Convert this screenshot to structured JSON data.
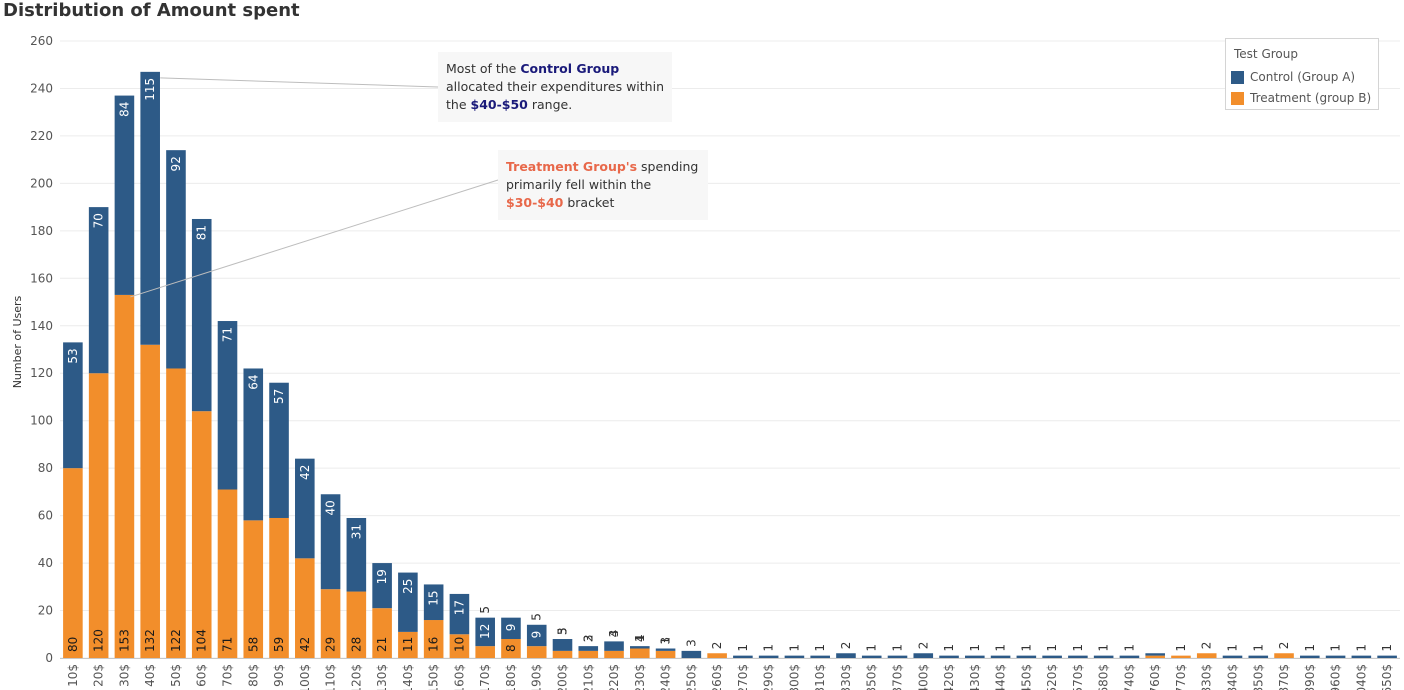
{
  "header": {
    "title": "Distribution of Amount spent"
  },
  "colors": {
    "control": "#2d5a87",
    "treatment": "#f28e2b",
    "grid": "#ececec",
    "axis_text": "#555555"
  },
  "legend": {
    "title": "Test Group",
    "items": [
      {
        "label": "Control (Group A)",
        "color": "#2d5a87"
      },
      {
        "label": "Treatment (group B)",
        "color": "#f28e2b"
      }
    ]
  },
  "annotations": {
    "control": {
      "prefix": "Most of the ",
      "group": "Control Group",
      "middle": " allocated their expenditures within the ",
      "range": "$40-$50",
      "suffix": " range."
    },
    "treatment": {
      "group": "Treatment Group's",
      "middle": " spending primarily fell within the ",
      "range": "$30-$40",
      "suffix": " bracket"
    }
  },
  "chart_data": {
    "type": "bar",
    "stacked": true,
    "title": "Distribution of Amount spent",
    "xlabel": "",
    "ylabel": "Number of Users",
    "ylim": [
      0,
      260
    ],
    "yticks": [
      0,
      20,
      40,
      60,
      80,
      100,
      120,
      140,
      160,
      180,
      200,
      220,
      240,
      260
    ],
    "grid": true,
    "legend_position": "top-right",
    "categories": [
      "10$",
      "20$",
      "30$",
      "40$",
      "50$",
      "60$",
      "70$",
      "80$",
      "90$",
      "100$",
      "110$",
      "120$",
      "130$",
      "140$",
      "150$",
      "160$",
      "170$",
      "180$",
      "190$",
      "200$",
      "210$",
      "220$",
      "230$",
      "240$",
      "250$",
      "260$",
      "270$",
      "290$",
      "300$",
      "310$",
      "330$",
      "350$",
      "370$",
      "400$",
      "420$",
      "430$",
      "440$",
      "450$",
      "520$",
      "570$",
      "680$",
      "740$",
      "760$",
      "770$",
      "830$",
      "840$",
      "850$",
      "870$",
      "890$",
      "960$",
      "1040$",
      "1650$"
    ],
    "series": [
      {
        "name": "Treatment (group B)",
        "values": [
          80,
          120,
          153,
          132,
          122,
          104,
          71,
          58,
          59,
          42,
          29,
          28,
          21,
          11,
          16,
          10,
          5,
          8,
          5,
          3,
          3,
          3,
          4,
          3,
          0,
          2,
          0,
          0,
          0,
          0,
          0,
          0,
          0,
          0,
          0,
          0,
          0,
          0,
          0,
          0,
          0,
          0,
          1,
          1,
          2,
          0,
          0,
          2,
          0,
          0,
          0,
          0
        ],
        "labels": [
          "80",
          "120",
          "153",
          "132",
          "122",
          "104",
          "71",
          "58",
          "59",
          "42",
          "29",
          "28",
          "21",
          "11",
          "16",
          "10",
          "5",
          "8",
          "5",
          "3",
          "3",
          "3",
          "4",
          "3",
          "",
          "2",
          "",
          "",
          "",
          "",
          "",
          "",
          "",
          "",
          "",
          "",
          "",
          "",
          "",
          "",
          "",
          "",
          "",
          "1",
          "2",
          "",
          "",
          "2",
          "",
          "",
          "",
          ""
        ]
      },
      {
        "name": "Control (Group A)",
        "values": [
          53,
          70,
          84,
          115,
          92,
          81,
          71,
          64,
          57,
          42,
          40,
          31,
          19,
          25,
          15,
          17,
          12,
          9,
          9,
          5,
          2,
          4,
          1,
          1,
          3,
          0,
          1,
          1,
          1,
          1,
          2,
          1,
          1,
          2,
          1,
          1,
          1,
          1,
          1,
          1,
          1,
          1,
          1,
          0,
          0,
          1,
          1,
          0,
          1,
          1,
          1,
          1
        ],
        "labels": [
          "53",
          "70",
          "84",
          "115",
          "92",
          "81",
          "71",
          "64",
          "57",
          "42",
          "40",
          "31",
          "19",
          "25",
          "15",
          "17",
          "12",
          "9",
          "9",
          "5",
          "2",
          "4",
          "1",
          "1",
          "3",
          "",
          "1",
          "1",
          "1",
          "1",
          "2",
          "1",
          "1",
          "2",
          "1",
          "1",
          "1",
          "1",
          "1",
          "1",
          "1",
          "1",
          "",
          "",
          "",
          "1",
          "1",
          "",
          "1",
          "1",
          "1",
          "1"
        ]
      }
    ]
  }
}
